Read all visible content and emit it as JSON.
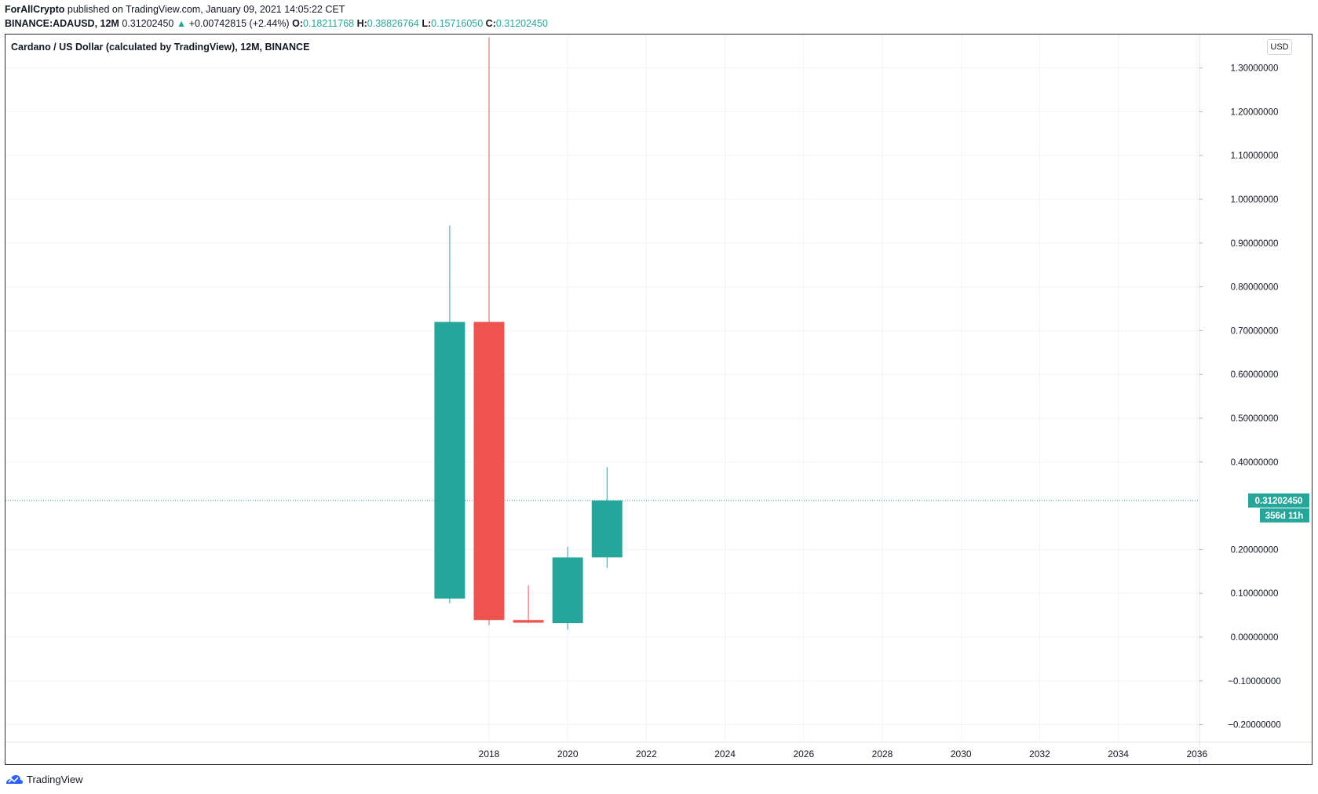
{
  "header": {
    "author": "ForAllCrypto",
    "published_text": "published on TradingView.com, January 09, 2021 14:05:22 CET",
    "symbol": "BINANCE:ADAUSD, 12M",
    "last": "0.31202450",
    "change_arrow": "▲",
    "change": "+0.00742815 (+2.44%)",
    "o_label": "O:",
    "o_value": "0.18211768",
    "h_label": "H:",
    "h_value": "0.38826764",
    "l_label": "L:",
    "l_value": "0.15716050",
    "c_label": "C:",
    "c_value": "0.31202450"
  },
  "chart_title": "Cardano / US Dollar (calculated by TradingView), 12M, BINANCE",
  "currency": "USD",
  "footer": {
    "brand": "TradingView",
    "logo_icon": "tradingview-cloud-icon"
  },
  "colors": {
    "up": "#26a69a",
    "down": "#ef5350",
    "grid": "#f0f3fa",
    "axis_text": "#131722"
  },
  "chart_data": {
    "type": "candlestick",
    "x_range": [
      2014.72,
      2037.16
    ],
    "y_range": [
      -0.246,
      1.378
    ],
    "y_ticks": [
      1.3,
      1.2,
      1.1,
      1.0,
      0.9,
      0.8,
      0.7,
      0.6,
      0.5,
      0.4,
      0.2,
      0.1,
      0.0,
      -0.1,
      -0.2
    ],
    "y_tick_labels": [
      "1.30000000",
      "1.20000000",
      "1.10000000",
      "1.00000000",
      "0.90000000",
      "0.80000000",
      "0.70000000",
      "0.60000000",
      "0.50000000",
      "0.40000000",
      "0.20000000",
      "0.10000000",
      "0.00000000",
      "−0.10000000",
      "−0.20000000"
    ],
    "x_ticks": [
      2018,
      2020,
      2022,
      2024,
      2026,
      2028,
      2030,
      2032,
      2034,
      2036
    ],
    "x_tick_labels": [
      "2018",
      "2020",
      "2022",
      "2024",
      "2026",
      "2028",
      "2030",
      "2032",
      "2034",
      "2036"
    ],
    "candles": [
      {
        "year": 2017,
        "open": 0.088,
        "high": 0.94,
        "low": 0.077,
        "close": 0.72
      },
      {
        "year": 2018,
        "open": 0.72,
        "high": 1.37,
        "low": 0.027,
        "close": 0.039
      },
      {
        "year": 2019,
        "open": 0.039,
        "high": 0.118,
        "low": 0.032,
        "close": 0.033
      },
      {
        "year": 2020,
        "open": 0.032,
        "high": 0.206,
        "low": 0.017,
        "close": 0.182
      },
      {
        "year": 2021,
        "open": 0.18211768,
        "high": 0.38826764,
        "low": 0.1571605,
        "close": 0.3120245
      }
    ],
    "last_price": 0.3120245,
    "last_price_label": "0.31202450",
    "countdown_label": "356d 11h",
    "grid": true
  }
}
